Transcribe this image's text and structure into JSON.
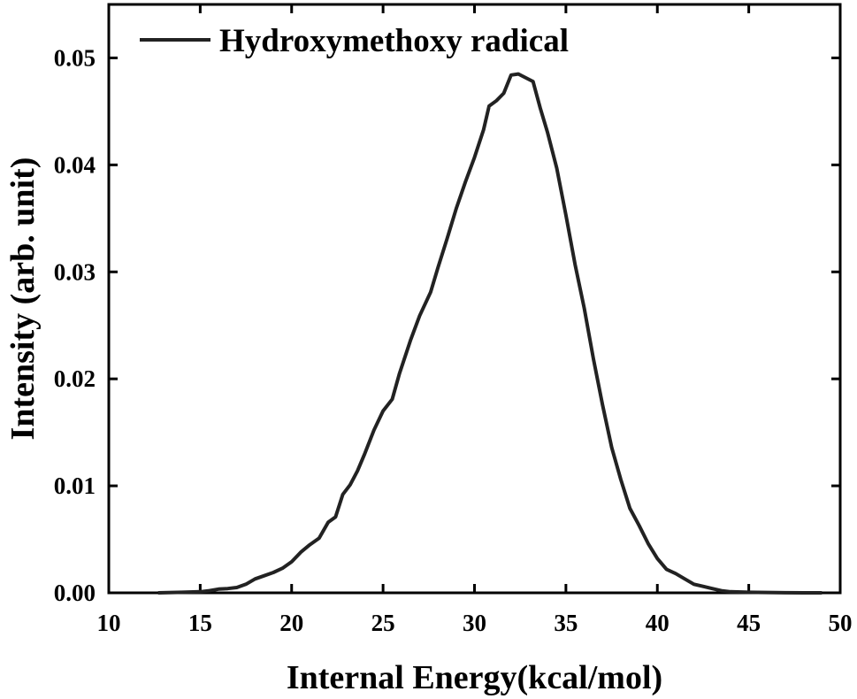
{
  "chart_data": {
    "type": "line",
    "xlabel": "Internal Energy(kcal/mol)",
    "ylabel": "Intensity (arb. unit)",
    "xlim": [
      10,
      50
    ],
    "ylim": [
      0,
      0.055
    ],
    "xticks": [
      10,
      15,
      20,
      25,
      30,
      35,
      40,
      45,
      50
    ],
    "xtick_labels": [
      "10",
      "15",
      "20",
      "25",
      "30",
      "35",
      "40",
      "45",
      "50"
    ],
    "yticks": [
      0,
      0.01,
      0.02,
      0.03,
      0.04,
      0.05
    ],
    "ytick_labels": [
      "0.00",
      "0.01",
      "0.02",
      "0.03",
      "0.04",
      "0.05"
    ],
    "grid": false,
    "legend_position": "top-left",
    "line_color": "#222222",
    "series": [
      {
        "name": "Hydroxymethoxy radical",
        "x": [
          12.7,
          14,
          15,
          15.5,
          16,
          16.5,
          17,
          17.5,
          18,
          18.5,
          19,
          19.5,
          20,
          20.5,
          21,
          21.5,
          22,
          22.4,
          22.8,
          23.2,
          23.6,
          24,
          24.5,
          25,
          25.5,
          25.9,
          26.5,
          27,
          27.6,
          28,
          28.5,
          29,
          29.5,
          30,
          30.5,
          30.8,
          31.2,
          31.6,
          32.0,
          32.4,
          33.2,
          33.6,
          34.0,
          34.5,
          35.0,
          35.5,
          36.0,
          36.5,
          37.0,
          37.5,
          38.0,
          38.5,
          39.0,
          39.5,
          40.0,
          40.5,
          41.0,
          41.5,
          42.0,
          42.5,
          43.0,
          43.5,
          44.0,
          45.0,
          46.0,
          47.0,
          48.0,
          49.0
        ],
        "y": [
          0,
          5e-05,
          0.0001,
          0.0002,
          0.00035,
          0.0004,
          0.0005,
          0.0008,
          0.0013,
          0.0016,
          0.0019,
          0.0023,
          0.0029,
          0.0038,
          0.0045,
          0.0051,
          0.0066,
          0.0071,
          0.0092,
          0.0101,
          0.0114,
          0.013,
          0.0152,
          0.017,
          0.0181,
          0.0205,
          0.0236,
          0.0259,
          0.0281,
          0.0304,
          0.0331,
          0.0359,
          0.0384,
          0.0407,
          0.0433,
          0.0455,
          0.046,
          0.0467,
          0.0484,
          0.0485,
          0.0478,
          0.0453,
          0.043,
          0.0397,
          0.0353,
          0.0307,
          0.0266,
          0.0219,
          0.0176,
          0.0136,
          0.0106,
          0.0079,
          0.0063,
          0.0046,
          0.0032,
          0.0022,
          0.0018,
          0.0013,
          0.0008,
          0.0006,
          0.0004,
          0.0002,
          0.0001,
          5e-05,
          3e-05,
          1e-05,
          0,
          0
        ]
      }
    ]
  }
}
